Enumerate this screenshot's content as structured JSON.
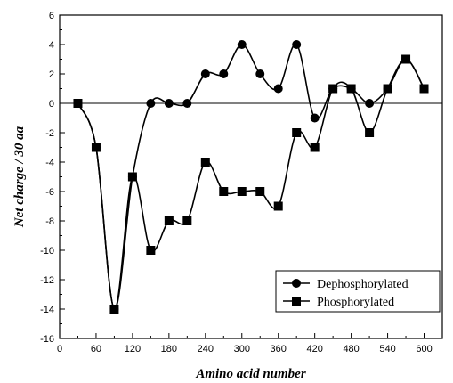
{
  "chart_data": {
    "type": "line",
    "xlabel": "Amino acid number",
    "ylabel": "Net charge / 30 aa",
    "xlim": [
      0,
      630
    ],
    "ylim": [
      -16,
      6
    ],
    "xticks": [
      0,
      60,
      120,
      180,
      240,
      300,
      360,
      420,
      480,
      540,
      600
    ],
    "yticks": [
      -16,
      -14,
      -12,
      -10,
      -8,
      -6,
      -4,
      -2,
      0,
      2,
      4,
      6
    ],
    "zero_line": true,
    "grid": false,
    "legend_position": "bottom-right",
    "series": [
      {
        "name": "Dephosphorylated",
        "marker": "circle",
        "x": [
          30,
          60,
          90,
          120,
          150,
          180,
          210,
          240,
          270,
          300,
          330,
          360,
          390,
          420,
          450,
          480,
          510,
          540,
          570,
          600
        ],
        "y": [
          0,
          -3,
          -14,
          -5,
          0,
          0,
          0,
          2,
          2,
          4,
          2,
          1,
          4,
          -1,
          1,
          1,
          0,
          1,
          3,
          1
        ]
      },
      {
        "name": "Phosphorylated",
        "marker": "square",
        "x": [
          30,
          60,
          90,
          120,
          150,
          180,
          210,
          240,
          270,
          300,
          330,
          360,
          390,
          420,
          450,
          480,
          510,
          540,
          570,
          600
        ],
        "y": [
          0,
          -3,
          -14,
          -5,
          -10,
          -8,
          -8,
          -4,
          -6,
          -6,
          -6,
          -7,
          -2,
          -3,
          1,
          1,
          -2,
          1,
          3,
          1
        ]
      }
    ]
  }
}
